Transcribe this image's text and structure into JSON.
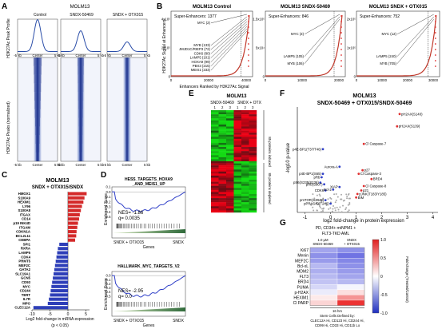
{
  "figure": {
    "panel_letters": [
      "A",
      "B",
      "C",
      "D",
      "E",
      "F",
      "G"
    ]
  },
  "panelA": {
    "cell_line": "MOLM13",
    "conditions": [
      "Control",
      "SNDX-50469",
      "SNDX + OTX015"
    ],
    "y_top": "H3K27Ac Peak Profile",
    "y_bottom": "H3K27Ac Peaks (normalized)",
    "x_ticks": [
      "-5 kb",
      "Center",
      "5 kb"
    ],
    "colors": {
      "profile": "#2a4da8",
      "heat_high": "#1c2f8a",
      "heat_low": "#f2f4fb"
    }
  },
  "panelB": {
    "panels": [
      {
        "title": "MOLM13 Control",
        "super": "Super-Enhancers: 1377",
        "x_ticks": [
          "0",
          "20000",
          "40000"
        ],
        "y_ticks": [
          "0",
          "2x10⁵",
          "4x10⁵"
        ],
        "labels": [
          "MYC (2)",
          "MYB (133)",
          "JMJD1C/RIEP3 (72)",
          "CDK6 (80)",
          "LAMP5 (101)",
          "HOXA9 (99)",
          "PBX3 (215)",
          "MEIS1 (233)"
        ]
      },
      {
        "title": "MOLM13 SNDX-50469",
        "super": "Super-Enhancers: 846",
        "x_ticks": [
          "0",
          "10000",
          "20000"
        ],
        "y_ticks": [
          "0",
          "5x10⁴",
          "1.5x10⁵"
        ],
        "labels": [
          "MYC (3)",
          "LAMP5 (105)",
          "MYB (106)"
        ]
      },
      {
        "title": "MOLM13 SNDX + OTX015",
        "super": "Super-Enhancers: 752",
        "x_ticks": [
          "0",
          "10000",
          "20000",
          "30000"
        ],
        "y_ticks": [
          "0",
          "1x10⁵",
          "2x10⁵"
        ],
        "labels": [
          "MYC (12)",
          "LAMP5 (240)",
          "MYB (705)"
        ]
      }
    ],
    "y_label": "H3K27Ac Signal at Enhancers",
    "x_label": "Enhancers Ranked by H3K27Ac Signal",
    "colors": {
      "curve": "#c0392b",
      "marker": "#e03030"
    }
  },
  "panelC": {
    "title": "MOLM13",
    "subtitle": "SNDX + OTX015/SNDX",
    "xlabel": "Log2 fold-change in mRNA expression",
    "xnote": "(p < 0.05)",
    "colors": {
      "up": "#d42a2a",
      "down": "#2e3fb8"
    }
  },
  "panelD": {
    "plots": [
      {
        "title1": "HESS_TARGETS_HOXA9",
        "title2": "_AND_MEIS1_UP",
        "nes": "NES= -1.86",
        "q": "q= 0.0035",
        "ylim": [
          -0.6,
          0.1
        ],
        "y_ticks": [
          "0.1",
          "0.0",
          "-0.1",
          "-0.2",
          "-0.3",
          "-0.4",
          "-0.5"
        ]
      },
      {
        "title1": "HALLMARK_MYC_TARGETS_V2",
        "title2": "",
        "nes": "NES= -2.95",
        "q": "q= 0.0",
        "ylim": [
          -0.6,
          0.1
        ],
        "y_ticks": [
          "0.0",
          "-0.1",
          "-0.2",
          "-0.3",
          "-0.4",
          "-0.5"
        ]
      }
    ],
    "y_label": "Enrichment Score",
    "x_left": "SNDX + OTX015",
    "x_right": "SNDX",
    "x_label": "Genes",
    "colors": {
      "curve": "#3040c8",
      "bar_left": "#d8e8c0",
      "bar_right": "#2f6a3a"
    }
  },
  "panelE": {
    "title": "MOLM13",
    "header_left": "SNDX-50469",
    "header_right": "SNDX + OTX",
    "cols": [
      "1",
      "2",
      "3",
      "1",
      "2",
      "3"
    ],
    "up_label": "85 proteins induced",
    "down_label": "85 proteins depleted",
    "colors": {
      "high": "#e01010",
      "low": "#10c010",
      "mid": "#141414"
    }
  },
  "panelF": {
    "title1": "MOLM13",
    "title2": "SNDX-50469 + OTX015/SNDX-50469",
    "xlabel": "log2 fold-change in protein expression",
    "ylabel": "-log10 p-value",
    "x_ticks": [
      "-1",
      "0",
      "1",
      "2",
      "3",
      "4"
    ],
    "points": [
      {
        "label": "pH2AX(S140)",
        "x": 2.7,
        "y": 5.6,
        "c": "#e03030"
      },
      {
        "label": "pH2AX(S139)",
        "x": 2.6,
        "y": 4.9,
        "c": "#e03030"
      },
      {
        "label": "Cl Caspase-7",
        "x": 1.3,
        "y": 3.9,
        "c": "#e03030"
      },
      {
        "label": "p4E-BP1(T37/T46)",
        "x": -0.3,
        "y": 3.6,
        "c": "#3040c8"
      },
      {
        "label": "Aurora-A",
        "x": 0.35,
        "y": 2.6,
        "c": "#3040c8"
      },
      {
        "label": "p27",
        "x": 1.25,
        "y": 2.4,
        "c": "#e03030"
      },
      {
        "label": "Cl Caspase-3",
        "x": 1.1,
        "y": 2.2,
        "c": "#e03030"
      },
      {
        "label": "p4E-BP1(S65)",
        "x": -0.3,
        "y": 2.2,
        "c": "#3040c8"
      },
      {
        "label": "pRb",
        "x": -0.35,
        "y": 2.0,
        "c": "#3040c8"
      },
      {
        "label": "BRD4",
        "x": 1.6,
        "y": 1.9,
        "c": "#e03030"
      },
      {
        "label": "pS6(S235/S236)",
        "x": -0.4,
        "y": 1.7,
        "c": "#3040c8"
      },
      {
        "label": "pRb(S807)",
        "x": -0.25,
        "y": 1.6,
        "c": "#3040c8"
      },
      {
        "label": "Cl Caspase-8",
        "x": 1.3,
        "y": 1.5,
        "c": "#e03030"
      },
      {
        "label": "XIAP",
        "x": 0.35,
        "y": 1.45,
        "c": "#3040c8"
      },
      {
        "label": "CDK6",
        "x": -0.2,
        "y": 1.25,
        "c": "#3040c8"
      },
      {
        "label": "Bcl-2",
        "x": 0.1,
        "y": 1.3,
        "c": "#3040c8"
      },
      {
        "label": "p21",
        "x": 1.2,
        "y": 1.25,
        "c": "#e03030"
      },
      {
        "label": "pJNK(T183/Y185)",
        "x": 1.05,
        "y": 1.05,
        "c": "#e03030"
      },
      {
        "label": "BIM",
        "x": 1.0,
        "y": 0.85,
        "c": "#e03030"
      },
      {
        "label": "pmTOR(S2448)",
        "x": -0.2,
        "y": 0.7,
        "c": "#3040c8"
      },
      {
        "label": "pPRAS40(T246)",
        "x": 0.0,
        "y": 0.5,
        "c": "#3040c8"
      }
    ]
  },
  "panelG": {
    "header": "PD, CD34+ mtNPM1 +",
    "header2": "FLT3-TKD AML",
    "col1": "1.0 µM",
    "col1b": "SNDX-50469",
    "col2": "SNDX",
    "col2b": "+ OTX015",
    "rows": [
      "Ki67",
      "Menin",
      "MEF2C",
      "Bcl-xL",
      "MDM2",
      "FLT3",
      "BRD4",
      "PUMA",
      "p-H2AX",
      "HEXIM1",
      "Cl PARP"
    ],
    "values": [
      [
        -0.45,
        -0.55
      ],
      [
        -0.55,
        -0.7
      ],
      [
        -0.5,
        -0.6
      ],
      [
        -0.35,
        -0.55
      ],
      [
        -0.4,
        -0.5
      ],
      [
        -0.35,
        -0.45
      ],
      [
        -0.3,
        -0.35
      ],
      [
        -0.2,
        -0.05
      ],
      [
        -0.1,
        0.15
      ],
      [
        0.1,
        0.5
      ],
      [
        0.2,
        0.95
      ]
    ],
    "footer1": "16 hrs",
    "footer2": "Stem Cells Defined by:",
    "footer3": "CLEC12A Hi, CD123 Hi, CD244 Hi,",
    "footer4": "CD99 Hi, CD33 Hi, CD11b Lo",
    "legend_title": "Fold-change (Treated/Control)",
    "legend_ticks": [
      "1.0",
      "0.5",
      "0",
      "-0.5",
      "-1.0"
    ]
  },
  "chart_data": [
    {
      "type": "bar",
      "title": "MOLM13",
      "subtitle": "SNDX + OTX015/SNDX",
      "xlabel": "Log2 fold-change in mRNA expression",
      "categories": [
        "HMOX1",
        "S100A9",
        "HEXIM1",
        "LY96",
        "S100A8",
        "ITGAX",
        "CD14",
        "p19 INK4D",
        "ITGAM",
        "CDKN1A",
        "BCL2L11",
        "CEBPA",
        "SPI1",
        "RXRA",
        "LAMP5",
        "CDK4",
        "PRMT5",
        "MEF2C",
        "GATA2",
        "SLC19A1",
        "GCN5",
        "CD93",
        "MYC",
        "CD244",
        "TERT",
        "IL7R",
        "MPO",
        "CLEC12A"
      ],
      "values": [
        5.2,
        4.6,
        4.3,
        3.9,
        3.6,
        3.3,
        3.1,
        2.8,
        2.6,
        2.4,
        2.3,
        2.0,
        -2.4,
        -2.8,
        -3.0,
        -3.2,
        -3.4,
        -3.6,
        -3.8,
        -4.0,
        -4.2,
        -4.4,
        -4.6,
        -4.8,
        -5.0,
        -5.3,
        -5.6,
        -9.6
      ],
      "xlim": [
        -10,
        6
      ],
      "x_ticks": [
        -10,
        -5,
        0,
        5
      ]
    }
  ]
}
